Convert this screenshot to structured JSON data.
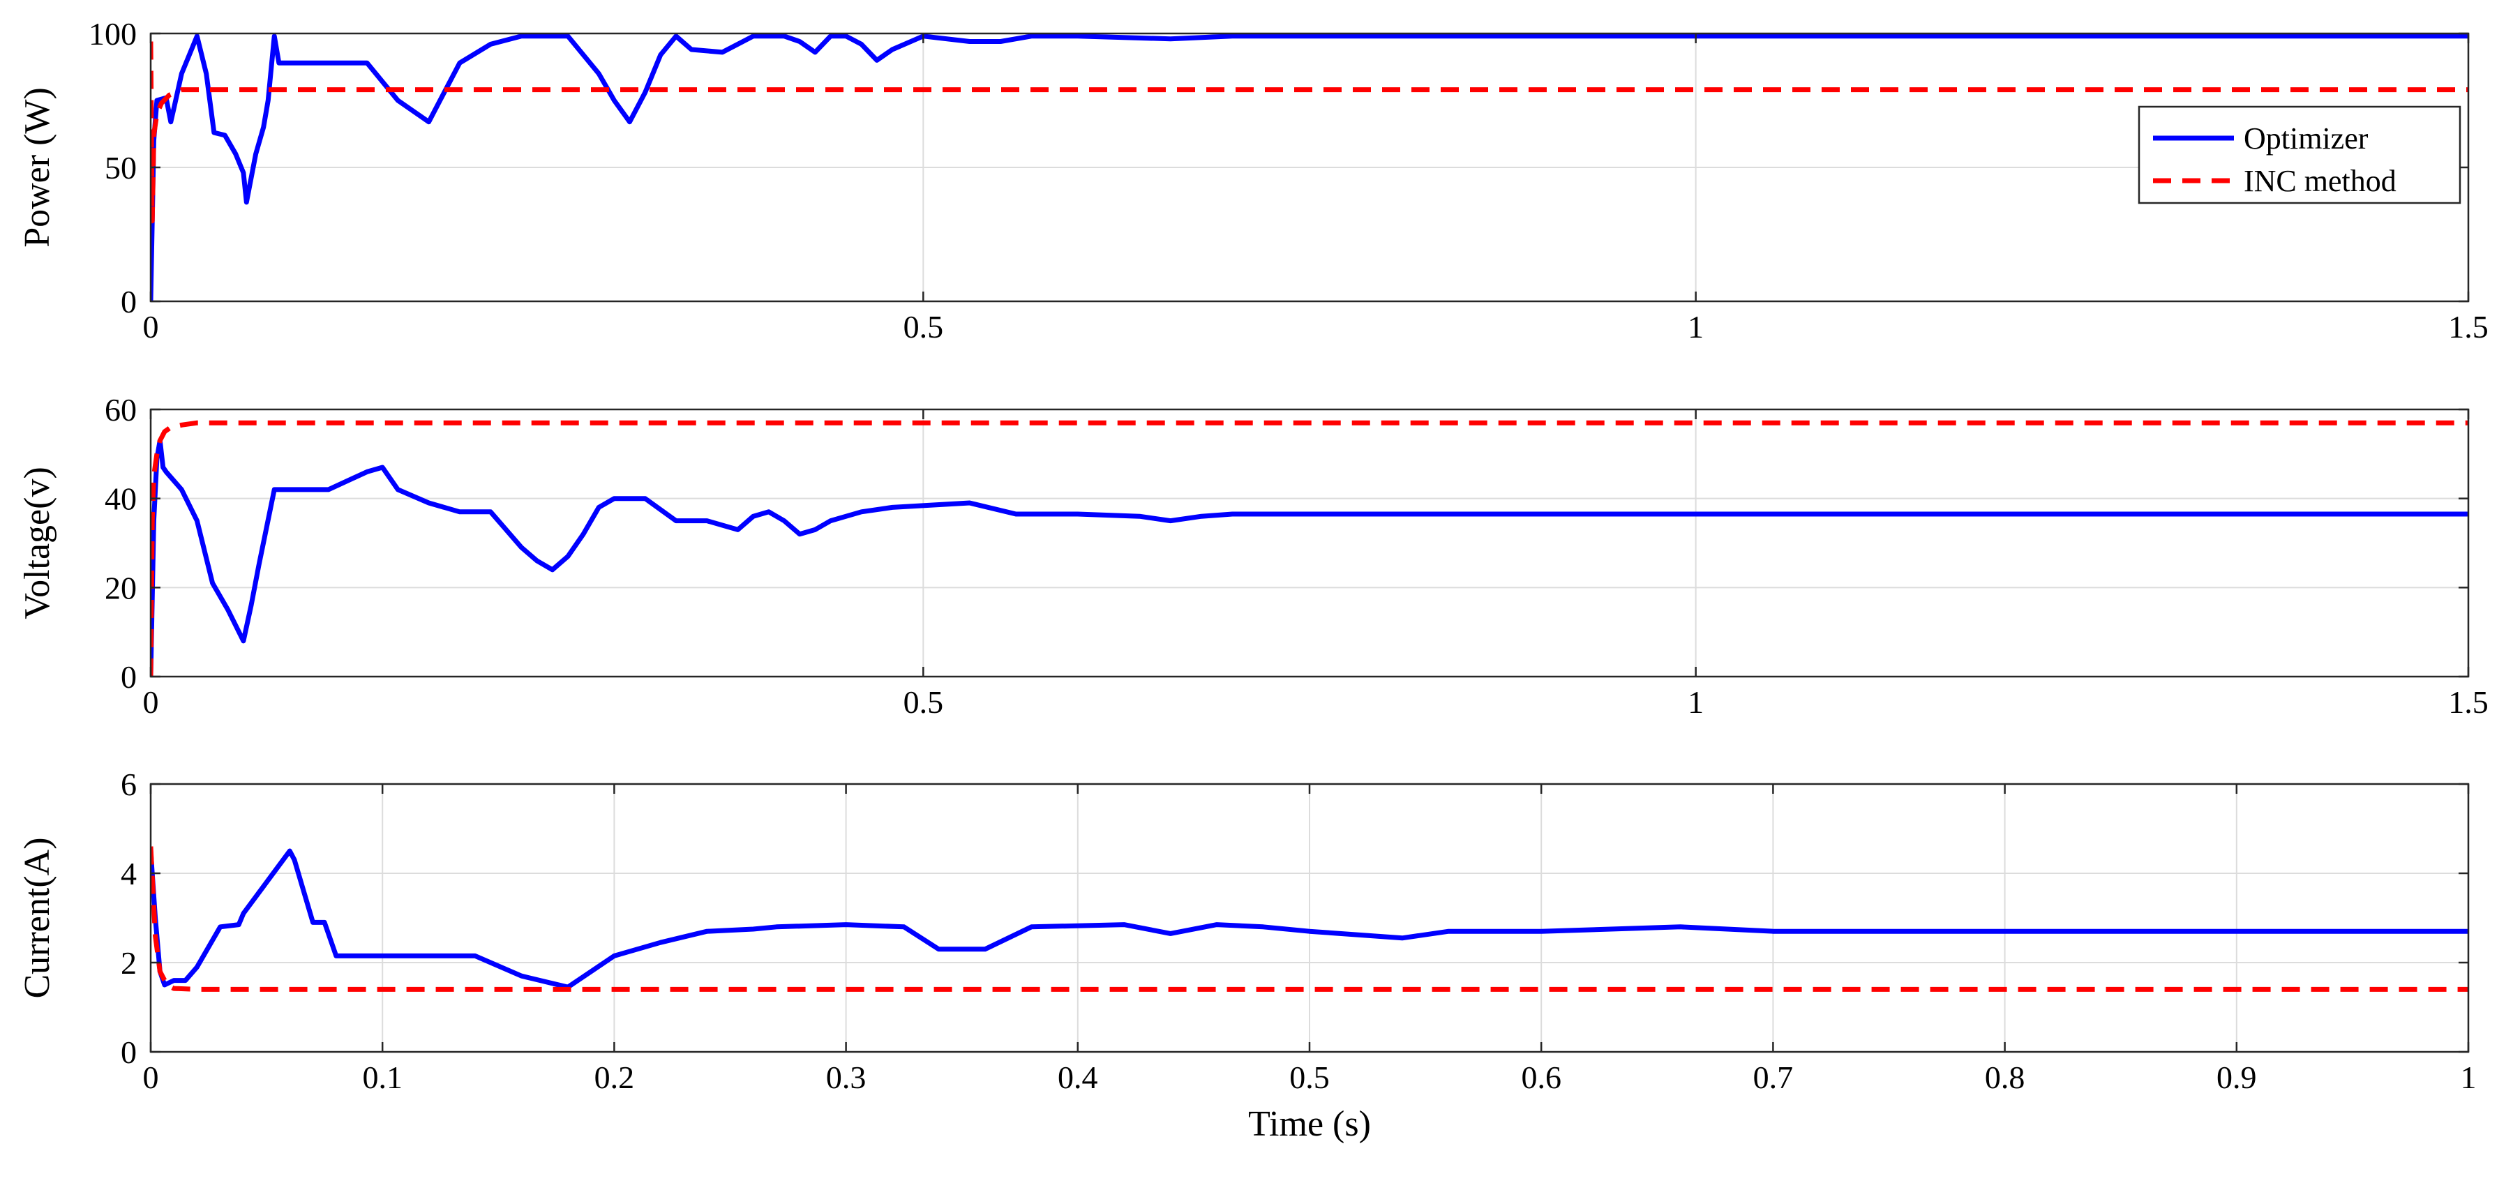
{
  "colors": {
    "optimizer": "#0000ff",
    "inc": "#ff0000",
    "grid": "#dcdcdc",
    "axes": "#262626"
  },
  "legend": {
    "position": "top-right of top panel",
    "entries": [
      "Optimizer",
      "INC method"
    ]
  },
  "chart_data": [
    {
      "type": "line",
      "id": "power",
      "xlabel": "",
      "ylabel": "Power (W)",
      "xlim": [
        0,
        1.5
      ],
      "ylim": [
        0,
        100
      ],
      "xticks": [
        0,
        0.5,
        1,
        1.5
      ],
      "xtick_labels": [
        "0",
        "0.5",
        "1",
        "1.5"
      ],
      "yticks": [
        0,
        50,
        100
      ],
      "ytick_labels": [
        "0",
        "50",
        "100"
      ],
      "grid": true,
      "series": [
        {
          "name": "Optimizer",
          "style": "solid",
          "points": [
            [
              0,
              0
            ],
            [
              0.002,
              60
            ],
            [
              0.004,
              75
            ],
            [
              0.01,
              76
            ],
            [
              0.013,
              67
            ],
            [
              0.015,
              72
            ],
            [
              0.02,
              85
            ],
            [
              0.03,
              99
            ],
            [
              0.036,
              85
            ],
            [
              0.041,
              63
            ],
            [
              0.048,
              62
            ],
            [
              0.055,
              55
            ],
            [
              0.06,
              48
            ],
            [
              0.062,
              37
            ],
            [
              0.068,
              55
            ],
            [
              0.073,
              65
            ],
            [
              0.076,
              75
            ],
            [
              0.08,
              99
            ],
            [
              0.083,
              89
            ],
            [
              0.1,
              89
            ],
            [
              0.14,
              89
            ],
            [
              0.16,
              75
            ],
            [
              0.18,
              67
            ],
            [
              0.2,
              89
            ],
            [
              0.22,
              96
            ],
            [
              0.24,
              99
            ],
            [
              0.27,
              99
            ],
            [
              0.29,
              85
            ],
            [
              0.3,
              75
            ],
            [
              0.31,
              67
            ],
            [
              0.32,
              78
            ],
            [
              0.33,
              92
            ],
            [
              0.34,
              99
            ],
            [
              0.35,
              94
            ],
            [
              0.37,
              93
            ],
            [
              0.39,
              99
            ],
            [
              0.41,
              99
            ],
            [
              0.42,
              97
            ],
            [
              0.43,
              93
            ],
            [
              0.44,
              99
            ],
            [
              0.45,
              99
            ],
            [
              0.46,
              96
            ],
            [
              0.47,
              90
            ],
            [
              0.48,
              94
            ],
            [
              0.5,
              99
            ],
            [
              0.53,
              97
            ],
            [
              0.55,
              97
            ],
            [
              0.57,
              99
            ],
            [
              0.6,
              99
            ],
            [
              0.66,
              98
            ],
            [
              0.7,
              99
            ],
            [
              1.0,
              99
            ],
            [
              1.5,
              99
            ]
          ]
        },
        {
          "name": "INC method",
          "style": "dashed",
          "points": [
            [
              0,
              97
            ],
            [
              0.001,
              30
            ],
            [
              0.002,
              62
            ],
            [
              0.004,
              70
            ],
            [
              0.007,
              74
            ],
            [
              0.012,
              77
            ],
            [
              0.02,
              79
            ],
            [
              0.03,
              79
            ],
            [
              1.5,
              79
            ]
          ]
        }
      ]
    },
    {
      "type": "line",
      "id": "voltage",
      "xlabel": "",
      "ylabel": "Voltage(v)",
      "xlim": [
        0,
        1.5
      ],
      "ylim": [
        0,
        60
      ],
      "xticks": [
        0,
        0.5,
        1,
        1.5
      ],
      "xtick_labels": [
        "0",
        "0.5",
        "1",
        "1.5"
      ],
      "yticks": [
        0,
        20,
        40,
        60
      ],
      "ytick_labels": [
        "0",
        "20",
        "40",
        "60"
      ],
      "grid": true,
      "series": [
        {
          "name": "Optimizer",
          "style": "solid",
          "points": [
            [
              0,
              0
            ],
            [
              0.002,
              35
            ],
            [
              0.004,
              49
            ],
            [
              0.006,
              53
            ],
            [
              0.008,
              47
            ],
            [
              0.01,
              46
            ],
            [
              0.02,
              42
            ],
            [
              0.03,
              35
            ],
            [
              0.04,
              21
            ],
            [
              0.05,
              15
            ],
            [
              0.06,
              8
            ],
            [
              0.065,
              16
            ],
            [
              0.07,
              25
            ],
            [
              0.08,
              42
            ],
            [
              0.1,
              42
            ],
            [
              0.115,
              42
            ],
            [
              0.14,
              46
            ],
            [
              0.15,
              47
            ],
            [
              0.16,
              42
            ],
            [
              0.18,
              39
            ],
            [
              0.2,
              37
            ],
            [
              0.22,
              37
            ],
            [
              0.24,
              29
            ],
            [
              0.25,
              26
            ],
            [
              0.26,
              24
            ],
            [
              0.27,
              27
            ],
            [
              0.28,
              32
            ],
            [
              0.29,
              38
            ],
            [
              0.3,
              40
            ],
            [
              0.32,
              40
            ],
            [
              0.34,
              35
            ],
            [
              0.35,
              35
            ],
            [
              0.36,
              35
            ],
            [
              0.37,
              34
            ],
            [
              0.38,
              33
            ],
            [
              0.39,
              36
            ],
            [
              0.4,
              37
            ],
            [
              0.41,
              35
            ],
            [
              0.42,
              32
            ],
            [
              0.43,
              33
            ],
            [
              0.44,
              35
            ],
            [
              0.46,
              37
            ],
            [
              0.48,
              38
            ],
            [
              0.53,
              39
            ],
            [
              0.56,
              36.5
            ],
            [
              0.6,
              36.5
            ],
            [
              0.64,
              36
            ],
            [
              0.66,
              35
            ],
            [
              0.68,
              36
            ],
            [
              0.7,
              36.5
            ],
            [
              0.73,
              36.5
            ],
            [
              1.0,
              36.5
            ],
            [
              1.5,
              36.5
            ]
          ]
        },
        {
          "name": "INC method",
          "style": "dashed",
          "points": [
            [
              0,
              0
            ],
            [
              0.001,
              35
            ],
            [
              0.002,
              45
            ],
            [
              0.004,
              50
            ],
            [
              0.006,
              53
            ],
            [
              0.009,
              55
            ],
            [
              0.013,
              56
            ],
            [
              0.02,
              56.5
            ],
            [
              0.03,
              57
            ],
            [
              1.5,
              57
            ]
          ]
        }
      ]
    },
    {
      "type": "line",
      "id": "current",
      "xlabel": "Time (s)",
      "ylabel": "Current(A)",
      "xlim": [
        0,
        1
      ],
      "ylim": [
        0,
        6
      ],
      "xticks": [
        0,
        0.1,
        0.2,
        0.3,
        0.4,
        0.5,
        0.6,
        0.7,
        0.8,
        0.9,
        1
      ],
      "xtick_labels": [
        "0",
        "0.1",
        "0.2",
        "0.3",
        "0.4",
        "0.5",
        "0.6",
        "0.7",
        "0.8",
        "0.9",
        "1"
      ],
      "yticks": [
        0,
        2,
        4,
        6
      ],
      "ytick_labels": [
        "0",
        "2",
        "4",
        "6"
      ],
      "grid": true,
      "series": [
        {
          "name": "Optimizer",
          "style": "solid",
          "points": [
            [
              0,
              4.5
            ],
            [
              0.002,
              3.0
            ],
            [
              0.004,
              1.8
            ],
            [
              0.006,
              1.5
            ],
            [
              0.01,
              1.6
            ],
            [
              0.015,
              1.6
            ],
            [
              0.02,
              1.9
            ],
            [
              0.03,
              2.8
            ],
            [
              0.038,
              2.85
            ],
            [
              0.04,
              3.1
            ],
            [
              0.05,
              3.8
            ],
            [
              0.06,
              4.5
            ],
            [
              0.062,
              4.3
            ],
            [
              0.07,
              2.9
            ],
            [
              0.075,
              2.9
            ],
            [
              0.08,
              2.15
            ],
            [
              0.1,
              2.15
            ],
            [
              0.14,
              2.15
            ],
            [
              0.16,
              1.7
            ],
            [
              0.18,
              1.45
            ],
            [
              0.2,
              2.15
            ],
            [
              0.22,
              2.45
            ],
            [
              0.24,
              2.7
            ],
            [
              0.26,
              2.75
            ],
            [
              0.27,
              2.8
            ],
            [
              0.3,
              2.85
            ],
            [
              0.325,
              2.8
            ],
            [
              0.34,
              2.3
            ],
            [
              0.36,
              2.3
            ],
            [
              0.38,
              2.8
            ],
            [
              0.42,
              2.85
            ],
            [
              0.44,
              2.65
            ],
            [
              0.46,
              2.85
            ],
            [
              0.48,
              2.8
            ],
            [
              0.5,
              2.7
            ],
            [
              0.54,
              2.55
            ],
            [
              0.56,
              2.7
            ],
            [
              0.6,
              2.7
            ],
            [
              0.66,
              2.8
            ],
            [
              0.7,
              2.7
            ],
            [
              0.8,
              2.7
            ],
            [
              0.9,
              2.7
            ],
            [
              1.0,
              2.7
            ]
          ]
        },
        {
          "name": "INC method",
          "style": "dashed",
          "points": [
            [
              0,
              4.6
            ],
            [
              0.002,
              2.6
            ],
            [
              0.004,
              1.8
            ],
            [
              0.007,
              1.5
            ],
            [
              0.01,
              1.42
            ],
            [
              0.02,
              1.4
            ],
            [
              1.0,
              1.4
            ]
          ]
        }
      ]
    }
  ]
}
